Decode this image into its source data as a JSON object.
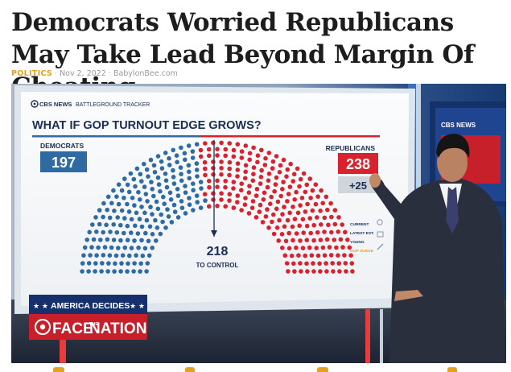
{
  "article": {
    "headline": "Democrats Worried Republicans May Take Lead Beyond Margin Of Cheating",
    "category": "POLITICS",
    "date": "Nov 2, 2022",
    "source": "BabylonBee.com",
    "accent_color": "#e3a021"
  },
  "broadcast": {
    "logo_text": "CBS NEWS",
    "tracker_text": "BATTLEGROUND TRACKER",
    "question": "WHAT IF GOP TURNOUT EDGE GROWS?",
    "dem_label": "DEMOCRATS",
    "dem_value": "197",
    "rep_label": "REPUBLICANS",
    "rep_value": "238",
    "rep_delta": "+25",
    "control_value": "218",
    "control_label": "TO CONTROL",
    "menu_items": [
      "CURRENT",
      "LATEST EST.",
      "YOUNG",
      "GOP SURGE"
    ],
    "side_logo": "CBS NEWS",
    "banner_top": "AMERICA DECIDES",
    "banner_show_a": "FACE",
    "banner_show_the": "THE",
    "banner_show_b": "NATION",
    "dem_color": "#2f6aa3",
    "rep_color": "#d9222e"
  },
  "chart_data": {
    "type": "seat-arc",
    "categories": [
      "Democrats",
      "Republicans"
    ],
    "values": [
      197,
      238
    ],
    "control_threshold": 218,
    "rep_change": 25,
    "title": "WHAT IF GOP TURNOUT EDGE GROWS?"
  }
}
